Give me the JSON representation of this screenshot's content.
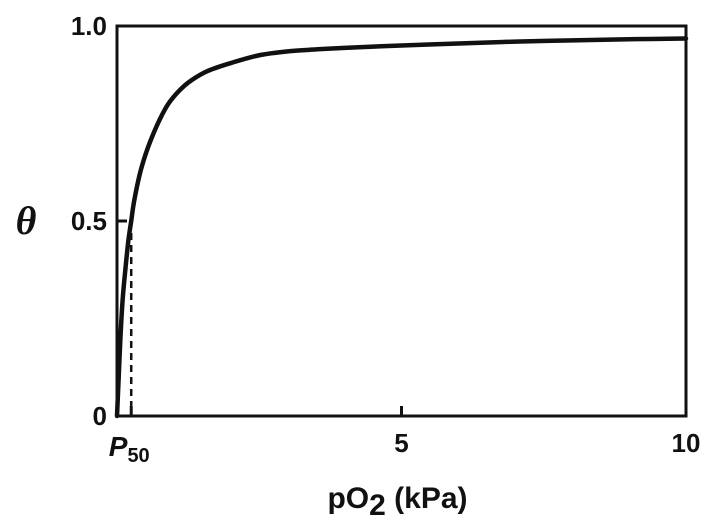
{
  "chart_data": {
    "type": "line",
    "title": "",
    "xlabel": {
      "main": "pO",
      "sub": "2",
      "rest": " (kPa)"
    },
    "ylabel": "θ",
    "xlim": [
      0,
      10
    ],
    "ylim": [
      0,
      1.0
    ],
    "grid": false,
    "legend": "none",
    "x_ticks": [
      {
        "value": 0.25,
        "main": "P",
        "sub": "50"
      },
      {
        "value": 5,
        "label": "5"
      },
      {
        "value": 10,
        "label": "10"
      }
    ],
    "y_ticks": [
      {
        "value": 0,
        "label": "0"
      },
      {
        "value": 0.5,
        "label": "0.5"
      },
      {
        "value": 1.0,
        "label": "1.0"
      }
    ],
    "series": [
      {
        "x": [
          0,
          0.03,
          0.06,
          0.1,
          0.15,
          0.2,
          0.25,
          0.3,
          0.4,
          0.5,
          0.6,
          0.75,
          0.9,
          1.1,
          1.3,
          1.6,
          2.0,
          2.5,
          3.0,
          3.5,
          4.0,
          5.0,
          6.0,
          7.0,
          8.0,
          9.0,
          10.0
        ],
        "y": [
          0,
          0.1,
          0.2,
          0.3,
          0.38,
          0.45,
          0.5,
          0.55,
          0.62,
          0.67,
          0.71,
          0.76,
          0.8,
          0.835,
          0.86,
          0.885,
          0.905,
          0.925,
          0.935,
          0.94,
          0.944,
          0.95,
          0.955,
          0.96,
          0.963,
          0.966,
          0.968
        ]
      }
    ],
    "reference_line": {
      "x": 0.25,
      "y": 0.5,
      "style": "dashed"
    },
    "colors": {
      "curve": "#111111",
      "axes": "#111111",
      "dash": "#111111"
    }
  }
}
